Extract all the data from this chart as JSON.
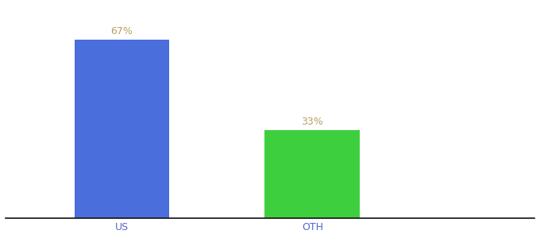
{
  "categories": [
    "US",
    "OTH"
  ],
  "values": [
    67,
    33
  ],
  "bar_colors": [
    "#4a6edb",
    "#3ecf3e"
  ],
  "label_texts": [
    "67%",
    "33%"
  ],
  "xlabel": "",
  "ylabel": "",
  "ylim": [
    0,
    80
  ],
  "bar_width": 0.18,
  "label_fontsize": 9,
  "tick_fontsize": 9,
  "tick_color": "#5566cc",
  "label_color": "#b8a060",
  "background_color": "#ffffff",
  "x_positions": [
    0.22,
    0.58
  ],
  "xlim": [
    0.0,
    1.0
  ]
}
